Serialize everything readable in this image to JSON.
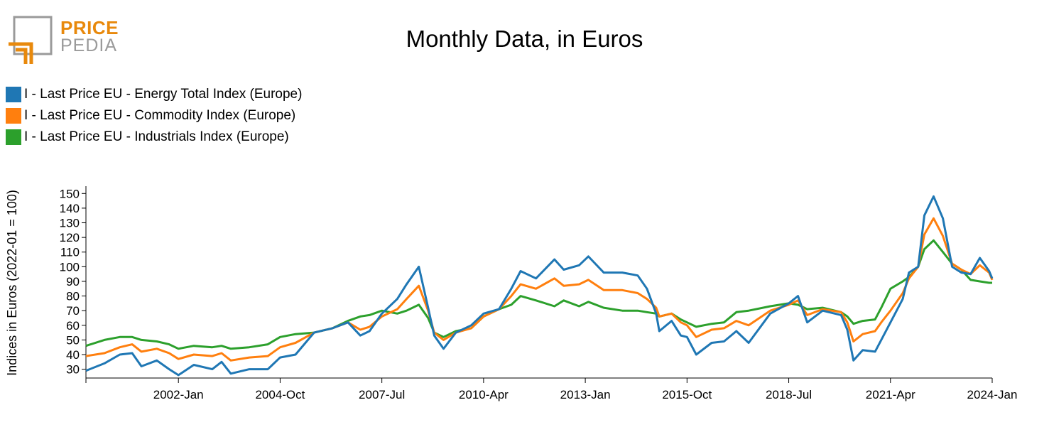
{
  "logo": {
    "line1": "PRICE",
    "line2": "PEDIA"
  },
  "colors": {
    "energy": "#1f77b4",
    "commodity": "#ff7f0e",
    "industrials": "#2ca02c",
    "logo_orange": "#e8890c",
    "logo_gray": "#9a9a9a"
  },
  "chart_data": {
    "type": "line",
    "title": "Monthly Data, in Euros",
    "ylabel": "Indices in Euros (2022-01 = 100)",
    "xlabel": "",
    "xlim": [
      "1999-07",
      "2024-01"
    ],
    "ylim": [
      24,
      155
    ],
    "x_ticks": [
      "2002-Jan",
      "2004-Oct",
      "2007-Jul",
      "2010-Apr",
      "2013-Jan",
      "2015-Oct",
      "2018-Jul",
      "2021-Apr",
      "2024-Jan"
    ],
    "y_ticks": [
      30,
      40,
      50,
      60,
      70,
      80,
      90,
      100,
      110,
      120,
      130,
      140,
      150
    ],
    "legend_position": "top-left",
    "series": [
      {
        "name": "I - Last Price EU - Energy Total Index (Europe)",
        "color": "#1f77b4",
        "points": [
          [
            "1999-07",
            29
          ],
          [
            "2000-01",
            34
          ],
          [
            "2000-06",
            40
          ],
          [
            "2000-10",
            41
          ],
          [
            "2001-01",
            32
          ],
          [
            "2001-06",
            36
          ],
          [
            "2001-10",
            30
          ],
          [
            "2002-01",
            26
          ],
          [
            "2002-06",
            33
          ],
          [
            "2002-12",
            30
          ],
          [
            "2003-03",
            35
          ],
          [
            "2003-06",
            27
          ],
          [
            "2003-12",
            30
          ],
          [
            "2004-06",
            30
          ],
          [
            "2004-10",
            38
          ],
          [
            "2005-03",
            40
          ],
          [
            "2005-09",
            55
          ],
          [
            "2006-03",
            58
          ],
          [
            "2006-08",
            62
          ],
          [
            "2006-12",
            53
          ],
          [
            "2007-03",
            56
          ],
          [
            "2007-07",
            68
          ],
          [
            "2007-12",
            78
          ],
          [
            "2008-03",
            88
          ],
          [
            "2008-07",
            100
          ],
          [
            "2008-10",
            72
          ],
          [
            "2008-12",
            53
          ],
          [
            "2009-03",
            44
          ],
          [
            "2009-07",
            55
          ],
          [
            "2009-12",
            60
          ],
          [
            "2010-04",
            68
          ],
          [
            "2010-09",
            71
          ],
          [
            "2011-01",
            85
          ],
          [
            "2011-04",
            97
          ],
          [
            "2011-09",
            92
          ],
          [
            "2012-03",
            105
          ],
          [
            "2012-06",
            98
          ],
          [
            "2012-11",
            101
          ],
          [
            "2013-02",
            107
          ],
          [
            "2013-07",
            96
          ],
          [
            "2014-01",
            96
          ],
          [
            "2014-06",
            94
          ],
          [
            "2014-09",
            85
          ],
          [
            "2014-12",
            68
          ],
          [
            "2015-01",
            56
          ],
          [
            "2015-05",
            63
          ],
          [
            "2015-08",
            53
          ],
          [
            "2015-10",
            52
          ],
          [
            "2016-01",
            40
          ],
          [
            "2016-06",
            48
          ],
          [
            "2016-10",
            49
          ],
          [
            "2017-02",
            56
          ],
          [
            "2017-06",
            48
          ],
          [
            "2018-01",
            68
          ],
          [
            "2018-07",
            75
          ],
          [
            "2018-10",
            80
          ],
          [
            "2019-01",
            62
          ],
          [
            "2019-06",
            70
          ],
          [
            "2019-12",
            67
          ],
          [
            "2020-02",
            57
          ],
          [
            "2020-04",
            36
          ],
          [
            "2020-07",
            43
          ],
          [
            "2020-11",
            42
          ],
          [
            "2021-01",
            50
          ],
          [
            "2021-04",
            62
          ],
          [
            "2021-08",
            78
          ],
          [
            "2021-10",
            96
          ],
          [
            "2022-01",
            100
          ],
          [
            "2022-03",
            135
          ],
          [
            "2022-06",
            148
          ],
          [
            "2022-09",
            133
          ],
          [
            "2022-12",
            100
          ],
          [
            "2023-03",
            96
          ],
          [
            "2023-06",
            95
          ],
          [
            "2023-09",
            106
          ],
          [
            "2023-12",
            97
          ],
          [
            "2024-01",
            92
          ]
        ]
      },
      {
        "name": "I - Last Price EU - Commodity Index (Europe)",
        "color": "#ff7f0e",
        "points": [
          [
            "1999-07",
            39
          ],
          [
            "2000-01",
            41
          ],
          [
            "2000-06",
            45
          ],
          [
            "2000-10",
            47
          ],
          [
            "2001-01",
            42
          ],
          [
            "2001-06",
            44
          ],
          [
            "2001-10",
            41
          ],
          [
            "2002-01",
            37
          ],
          [
            "2002-06",
            40
          ],
          [
            "2002-12",
            39
          ],
          [
            "2003-03",
            41
          ],
          [
            "2003-06",
            36
          ],
          [
            "2003-12",
            38
          ],
          [
            "2004-06",
            39
          ],
          [
            "2004-10",
            45
          ],
          [
            "2005-03",
            48
          ],
          [
            "2005-09",
            55
          ],
          [
            "2006-03",
            58
          ],
          [
            "2006-08",
            62
          ],
          [
            "2006-12",
            57
          ],
          [
            "2007-03",
            59
          ],
          [
            "2007-07",
            66
          ],
          [
            "2007-12",
            71
          ],
          [
            "2008-03",
            78
          ],
          [
            "2008-07",
            87
          ],
          [
            "2008-10",
            70
          ],
          [
            "2008-12",
            55
          ],
          [
            "2009-03",
            50
          ],
          [
            "2009-07",
            55
          ],
          [
            "2009-12",
            58
          ],
          [
            "2010-04",
            66
          ],
          [
            "2010-09",
            71
          ],
          [
            "2011-01",
            80
          ],
          [
            "2011-04",
            88
          ],
          [
            "2011-09",
            85
          ],
          [
            "2012-03",
            92
          ],
          [
            "2012-06",
            87
          ],
          [
            "2012-11",
            88
          ],
          [
            "2013-02",
            91
          ],
          [
            "2013-07",
            84
          ],
          [
            "2014-01",
            84
          ],
          [
            "2014-06",
            82
          ],
          [
            "2014-09",
            78
          ],
          [
            "2014-12",
            72
          ],
          [
            "2015-01",
            66
          ],
          [
            "2015-05",
            68
          ],
          [
            "2015-08",
            62
          ],
          [
            "2015-10",
            60
          ],
          [
            "2016-01",
            52
          ],
          [
            "2016-06",
            57
          ],
          [
            "2016-10",
            58
          ],
          [
            "2017-02",
            63
          ],
          [
            "2017-06",
            60
          ],
          [
            "2018-01",
            70
          ],
          [
            "2018-07",
            74
          ],
          [
            "2018-10",
            77
          ],
          [
            "2019-01",
            67
          ],
          [
            "2019-06",
            71
          ],
          [
            "2019-12",
            69
          ],
          [
            "2020-02",
            62
          ],
          [
            "2020-04",
            49
          ],
          [
            "2020-07",
            54
          ],
          [
            "2020-11",
            56
          ],
          [
            "2021-01",
            62
          ],
          [
            "2021-04",
            70
          ],
          [
            "2021-08",
            82
          ],
          [
            "2021-10",
            92
          ],
          [
            "2022-01",
            100
          ],
          [
            "2022-03",
            122
          ],
          [
            "2022-06",
            133
          ],
          [
            "2022-09",
            121
          ],
          [
            "2022-12",
            102
          ],
          [
            "2023-03",
            98
          ],
          [
            "2023-06",
            95
          ],
          [
            "2023-09",
            101
          ],
          [
            "2023-12",
            96
          ],
          [
            "2024-01",
            91
          ]
        ]
      },
      {
        "name": "I - Last Price EU - Industrials Index (Europe)",
        "color": "#2ca02c",
        "points": [
          [
            "1999-07",
            46
          ],
          [
            "2000-01",
            50
          ],
          [
            "2000-06",
            52
          ],
          [
            "2000-10",
            52
          ],
          [
            "2001-01",
            50
          ],
          [
            "2001-06",
            49
          ],
          [
            "2001-10",
            47
          ],
          [
            "2002-01",
            44
          ],
          [
            "2002-06",
            46
          ],
          [
            "2002-12",
            45
          ],
          [
            "2003-03",
            46
          ],
          [
            "2003-06",
            44
          ],
          [
            "2003-12",
            45
          ],
          [
            "2004-06",
            47
          ],
          [
            "2004-10",
            52
          ],
          [
            "2005-03",
            54
          ],
          [
            "2005-09",
            55
          ],
          [
            "2006-03",
            58
          ],
          [
            "2006-08",
            63
          ],
          [
            "2006-12",
            66
          ],
          [
            "2007-03",
            67
          ],
          [
            "2007-07",
            70
          ],
          [
            "2007-12",
            68
          ],
          [
            "2008-03",
            70
          ],
          [
            "2008-07",
            74
          ],
          [
            "2008-10",
            65
          ],
          [
            "2008-12",
            55
          ],
          [
            "2009-03",
            52
          ],
          [
            "2009-07",
            56
          ],
          [
            "2009-12",
            58
          ],
          [
            "2010-04",
            66
          ],
          [
            "2010-09",
            71
          ],
          [
            "2011-01",
            74
          ],
          [
            "2011-04",
            80
          ],
          [
            "2011-09",
            77
          ],
          [
            "2012-03",
            73
          ],
          [
            "2012-06",
            77
          ],
          [
            "2012-11",
            73
          ],
          [
            "2013-02",
            76
          ],
          [
            "2013-07",
            72
          ],
          [
            "2014-01",
            70
          ],
          [
            "2014-06",
            70
          ],
          [
            "2014-09",
            69
          ],
          [
            "2014-12",
            68
          ],
          [
            "2015-01",
            66
          ],
          [
            "2015-05",
            68
          ],
          [
            "2015-08",
            64
          ],
          [
            "2015-10",
            62
          ],
          [
            "2016-01",
            59
          ],
          [
            "2016-06",
            61
          ],
          [
            "2016-10",
            62
          ],
          [
            "2017-02",
            69
          ],
          [
            "2017-06",
            70
          ],
          [
            "2018-01",
            73
          ],
          [
            "2018-07",
            75
          ],
          [
            "2018-10",
            74
          ],
          [
            "2019-01",
            71
          ],
          [
            "2019-06",
            72
          ],
          [
            "2019-12",
            69
          ],
          [
            "2020-02",
            66
          ],
          [
            "2020-04",
            61
          ],
          [
            "2020-07",
            63
          ],
          [
            "2020-11",
            64
          ],
          [
            "2021-01",
            72
          ],
          [
            "2021-04",
            85
          ],
          [
            "2021-08",
            90
          ],
          [
            "2021-10",
            93
          ],
          [
            "2022-01",
            100
          ],
          [
            "2022-03",
            112
          ],
          [
            "2022-06",
            118
          ],
          [
            "2022-09",
            110
          ],
          [
            "2022-12",
            102
          ],
          [
            "2023-03",
            98
          ],
          [
            "2023-06",
            91
          ],
          [
            "2023-09",
            90
          ],
          [
            "2023-12",
            89
          ],
          [
            "2024-01",
            89
          ]
        ]
      }
    ]
  }
}
